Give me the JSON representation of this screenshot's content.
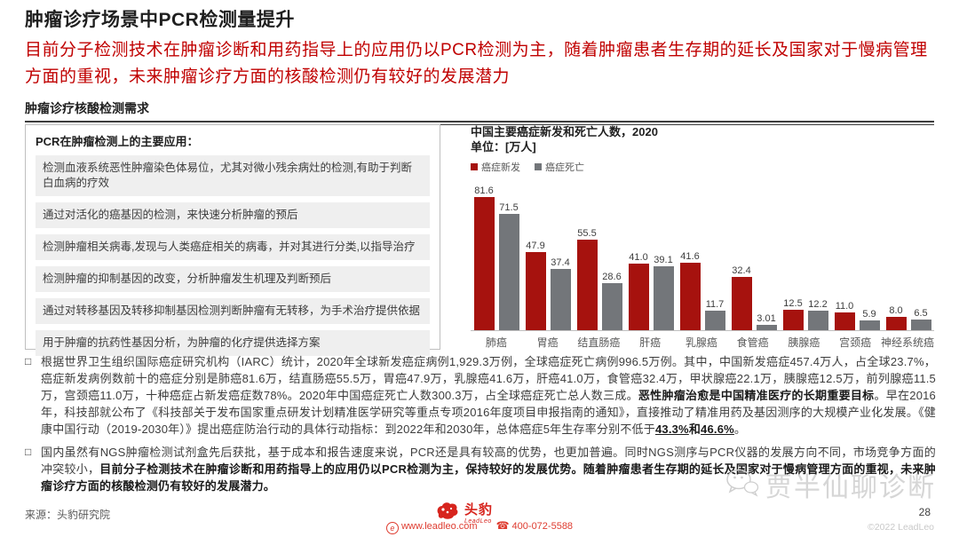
{
  "header": {
    "title": "肿瘤诊疗场景中PCR检测量提升",
    "subtitle": "目前分子检测技术在肿瘤诊断和用药指导上的应用仍以PCR检测为主，随着肿瘤患者生存期的延长及国家对于慢病管理方面的重视，未来肿瘤诊疗方面的核酸检测仍有较好的发展潜力"
  },
  "section": {
    "title": "肿瘤诊疗核酸检测需求"
  },
  "left_panel": {
    "title": "PCR在肿瘤检测上的主要应用：",
    "items": [
      "检测血液系统恶性肿瘤染色体易位，尤其对微小残余病灶的检测,有助于判断白血病的疗效",
      "通过对活化的癌基因的检测，来快速分析肿瘤的预后",
      "检测肿瘤相关病毒,发现与人类癌症相关的病毒，并对其进行分类,以指导治疗",
      "检测肿瘤的抑制基因的改变，分析肿瘤发生机理及判断预后",
      "通过对转移基因及转移抑制基因检测判断肿瘤有无转移，为手术治疗提供依据",
      "用于肿瘤的抗药性基因分析，为肿瘤的化疗提供选择方案"
    ]
  },
  "chart_data": {
    "type": "bar",
    "title": "中国主要癌症新发和死亡人数，2020",
    "unit_label": "单位：[万人]",
    "categories": [
      "肺癌",
      "胃癌",
      "结直肠癌",
      "肝癌",
      "乳腺癌",
      "食管癌",
      "胰腺癌",
      "宫颈癌",
      "神经系统癌"
    ],
    "series": [
      {
        "name": "癌症新发",
        "color": "#a6120e",
        "values": [
          81.6,
          47.9,
          55.5,
          41.0,
          41.6,
          32.4,
          12.5,
          11.0,
          8.0
        ],
        "labels": [
          "81.6",
          "47.9",
          "55.5",
          "41.0",
          "41.6",
          "32.4",
          "12.5",
          "11.0",
          "8.0"
        ]
      },
      {
        "name": "癌症死亡",
        "color": "#73767a",
        "values": [
          71.5,
          37.4,
          28.6,
          39.1,
          11.7,
          3.01,
          12.2,
          5.9,
          6.5
        ],
        "labels": [
          "71.5",
          "37.4",
          "28.6",
          "39.1",
          "11.7",
          "3.01",
          "12.2",
          "5.9",
          "6.5"
        ]
      }
    ],
    "ylim": [
      0,
      90
    ],
    "grid": false,
    "legend_position": "top-left"
  },
  "bullets": [
    {
      "segments": [
        {
          "text": "根据世界卫生组织国际癌症研究机构（IARC）统计，2020年全球新发癌症病例1,929.3万例，全球癌症死亡病例996.5万例。其中，中国新发癌症457.4万人，占全球23.7%，癌症新发病例数前十的癌症分别是肺癌81.6万，结直肠癌55.5万，胃癌47.9万，乳腺癌41.6万，肝癌41.0万，食管癌32.4万，甲状腺癌22.1万，胰腺癌12.5万，前列腺癌11.5万，宫颈癌11.0万，十种癌症占新发癌症数78%。2020年中国癌症死亡人数300.3万，占全球癌症死亡总人数三成。",
          "bold": false,
          "underline": false
        },
        {
          "text": "恶性肿瘤治愈是中国精准医疗的长期重要目标",
          "bold": true,
          "underline": false
        },
        {
          "text": "。早在2016年，科技部就公布了《科技部关于发布国家重点研发计划精准医学研究等重点专项2016年度项目申报指南的通知》，直接推动了精准用药及基因测序的大规模产业化发展。《健康中国行动（2019-2030年）》提出癌症防治行动的具体行动指标：到2022年和2030年，总体癌症5年生存率分别不低于",
          "bold": false,
          "underline": false
        },
        {
          "text": "43.3%",
          "bold": true,
          "underline": true
        },
        {
          "text": "和",
          "bold": true,
          "underline": false
        },
        {
          "text": "46.6%",
          "bold": true,
          "underline": true
        },
        {
          "text": "。",
          "bold": false,
          "underline": false
        }
      ]
    },
    {
      "segments": [
        {
          "text": "国内虽然有NGS肿瘤检测试剂盒先后获批，基于成本和报告速度来说，PCR还是具有较高的优势，也更加普遍。同时NGS测序与PCR仪器的发展方向不同，市场竞争方面的冲突较小，",
          "bold": false,
          "underline": false
        },
        {
          "text": "目前分子检测技术在肿瘤诊断和用药指导上的应用仍以PCR检测为主，保持较好的发展优势。随着肿瘤患者生存期的延长及国家对于慢病管理方面的重视，未来肿瘤诊疗方面的核酸检测仍有较好的发展潜力。",
          "bold": true,
          "underline": false
        }
      ]
    }
  ],
  "footer": {
    "source": "来源：头豹研究院",
    "logo_text": "头豹",
    "logo_subtext": "LeadLeo",
    "website": "www.leadleo.com",
    "phone": "400-072-5588",
    "watermark": "贾半仙聊诊断",
    "page_number": "28",
    "copyright": "©2022 LeadLeo"
  },
  "colors": {
    "accent_red": "#c00000",
    "bar_new": "#a6120e",
    "bar_death": "#73767a",
    "logo_red": "#d7241d",
    "contact_red": "#de3b2f"
  },
  "bullet_marker": "□"
}
